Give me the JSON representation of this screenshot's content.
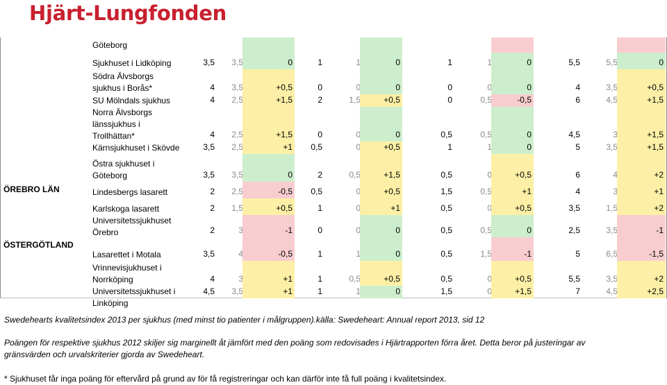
{
  "logo": {
    "brand": "Hjärt-Lungfonden"
  },
  "colors": {
    "green": "#cdeecd",
    "yellow": "#fdf0a6",
    "pink": "#f8cdd0",
    "brand": "#c8202f"
  },
  "rows": [
    {
      "region": "",
      "hospital": "Göteborg",
      "values": []
    },
    {
      "region": "",
      "hospital": "Sjukhuset i Lidköping",
      "values": [
        "3,5",
        "3,5",
        "0",
        "1",
        "1",
        "0",
        "1",
        "1",
        "0",
        "5,5",
        "5,5",
        "0"
      ]
    },
    {
      "region": "",
      "hospital": "Södra Älvsborgs\nsjukhus i Borås*",
      "values": [
        "4",
        "3,5",
        "+0,5",
        "0",
        "0",
        "0",
        "0",
        "0",
        "0",
        "4",
        "3,5",
        "+0,5"
      ]
    },
    {
      "region": "",
      "hospital": "SU Mölndals sjukhus",
      "values": [
        "4",
        "2,5",
        "+1,5",
        "2",
        "1,5",
        "+0,5",
        "0",
        "0,5",
        "-0,5",
        "6",
        "4,5",
        "+1,5"
      ]
    },
    {
      "region": "",
      "hospital": "Norra Älvsborgs\nlänssjukhus i\nTrollhättan*",
      "values": [
        "4",
        "2,5",
        "+1,5",
        "0",
        "0",
        "0",
        "0,5",
        "0,5",
        "0",
        "4,5",
        "3",
        "+1,5"
      ]
    },
    {
      "region": "",
      "hospital": "Kärnsjukhuset i Skövde",
      "values": [
        "3,5",
        "2,5",
        "+1",
        "0,5",
        "0",
        "+0,5",
        "1",
        "1",
        "0",
        "5",
        "3,5",
        "+1,5"
      ]
    },
    {
      "region": "",
      "hospital": "Östra sjukhuset i\nGöteborg",
      "values": [
        "3,5",
        "3,5",
        "0",
        "2",
        "0,5",
        "+1,5",
        "0,5",
        "0",
        "+0,5",
        "6",
        "4",
        "+2"
      ]
    },
    {
      "region": "ÖREBRO LÄN",
      "hospital": "Lindesbergs lasarett",
      "values": [
        "2",
        "2,5",
        "-0,5",
        "0,5",
        "0",
        "+0,5",
        "1,5",
        "0,5",
        "+1",
        "4",
        "3",
        "+1"
      ]
    },
    {
      "region": "",
      "hospital": "Karlskoga lasarett",
      "values": [
        "2",
        "1,5",
        "+0,5",
        "1",
        "0",
        "+1",
        "0,5",
        "0",
        "+0,5",
        "3,5",
        "1,5",
        "+2"
      ]
    },
    {
      "region": "",
      "hospital": "Universitetssjukhuset\nÖrebro",
      "values": [
        "2",
        "3",
        "-1",
        "0",
        "0",
        "0",
        "0,5",
        "0,5",
        "0",
        "2,5",
        "3,5",
        "-1"
      ]
    },
    {
      "region": "ÖSTERGÖTLAND",
      "hospital": "Lasarettet i Motala",
      "values": [
        "3,5",
        "4",
        "-0,5",
        "1",
        "1",
        "0",
        "0,5",
        "1,5",
        "-1",
        "5",
        "6,5",
        "-1,5"
      ]
    },
    {
      "region": "",
      "hospital": "Vrinnevisjukhuset i\nNorrköping",
      "values": [
        "4",
        "3",
        "+1",
        "1",
        "0,5",
        "+0,5",
        "0,5",
        "0",
        "+0,5",
        "5,5",
        "3,5",
        "+2"
      ]
    },
    {
      "region": "",
      "hospital": "Universitetssjukhuset i\nLinköping",
      "values": [
        "4,5",
        "3,5",
        "+1",
        "1",
        "1",
        "0",
        "1,5",
        "0",
        "+1,5",
        "7",
        "4,5",
        "+2,5"
      ]
    }
  ],
  "notes": {
    "source": "Swedehearts kvalitetsindex 2013 per sjukhus (med minst tio patienter i målgruppen).källa: Swedeheart: Annual report 2013, sid 12",
    "points": "Poängen för respektive sjukhus 2012 skiljer sig marginellt åt jämfört med den poäng som redovisades i Hjärtrapporten förra året. Detta beror på justeringar av gränsvärden och urvalskriterier gjorda av Swedeheart.",
    "footnote": "* Sjukhuset får inga poäng för eftervård på grund av för få registreringar och kan därför inte få full poäng i kvalitetsindex."
  }
}
